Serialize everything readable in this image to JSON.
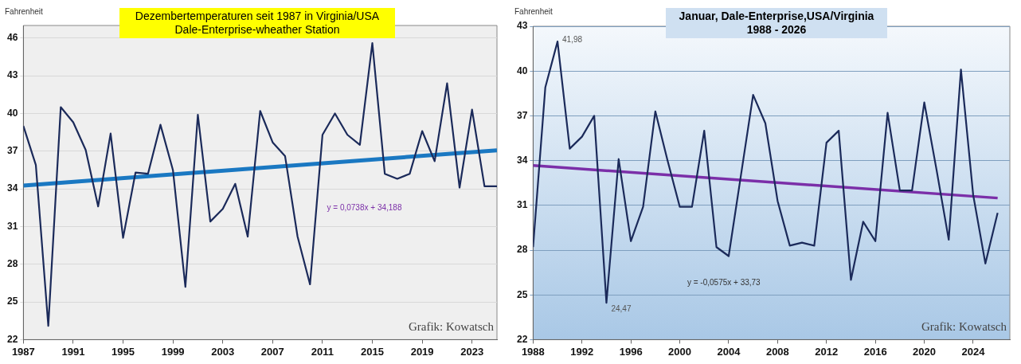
{
  "chart_data": [
    {
      "type": "line",
      "title": "Dezembertemperaturen seit 1987 in Virginia/USA",
      "subtitle": "Dale-Enterprise-wheather Station",
      "ylabel": "Fahrenheit",
      "x": [
        1987,
        1988,
        1989,
        1990,
        1991,
        1992,
        1993,
        1994,
        1995,
        1996,
        1997,
        1998,
        1999,
        2000,
        2001,
        2002,
        2003,
        2004,
        2005,
        2006,
        2007,
        2008,
        2009,
        2010,
        2011,
        2012,
        2013,
        2014,
        2015,
        2016,
        2017,
        2018,
        2019,
        2020,
        2021,
        2022,
        2023,
        2024,
        2025
      ],
      "series": [
        {
          "color": "#1b2a5a",
          "values": [
            39.0,
            35.9,
            23.1,
            40.5,
            39.3,
            37.1,
            32.6,
            38.4,
            30.1,
            35.3,
            35.2,
            39.1,
            35.5,
            26.2,
            39.9,
            31.4,
            32.4,
            34.4,
            30.2,
            40.2,
            37.7,
            36.6,
            30.2,
            26.4,
            38.3,
            40.0,
            38.3,
            37.5,
            45.6,
            35.2,
            34.8,
            35.2,
            38.6,
            36.2,
            42.4,
            34.1,
            40.3,
            34.2,
            34.2
          ]
        },
        {
          "color": "#1a78c2",
          "x": [
            1987,
            2025
          ],
          "values": [
            34.26,
            37.07
          ]
        }
      ],
      "xlim": [
        1987,
        2025
      ],
      "xticks": [
        1987,
        1991,
        1995,
        1999,
        2003,
        2007,
        2011,
        2015,
        2019,
        2023
      ],
      "ylim": [
        22,
        47
      ],
      "yticks": [
        22,
        25,
        28,
        31,
        34,
        37,
        40,
        43,
        46
      ],
      "grid": "y",
      "annotations": [
        "y = 0,0738x + 34,188",
        "Grafik: Kowatsch"
      ]
    },
    {
      "type": "line",
      "title": "Januar, Dale-Enterprise,USA/Virginia",
      "subtitle": "1988 - 2026",
      "ylabel": "Fahrenheit",
      "x": [
        1988,
        1989,
        1990,
        1991,
        1992,
        1993,
        1994,
        1995,
        1996,
        1997,
        1998,
        1999,
        2000,
        2001,
        2002,
        2003,
        2004,
        2005,
        2006,
        2007,
        2008,
        2009,
        2010,
        2011,
        2012,
        2013,
        2014,
        2015,
        2016,
        2017,
        2018,
        2019,
        2020,
        2021,
        2022,
        2023,
        2024,
        2025,
        2026
      ],
      "series": [
        {
          "color": "#1b2a5a",
          "values": [
            28.2,
            38.9,
            41.98,
            34.8,
            35.6,
            37.0,
            24.47,
            34.1,
            28.6,
            30.9,
            37.3,
            34.0,
            30.9,
            30.9,
            36.0,
            28.2,
            27.6,
            33.0,
            38.4,
            36.5,
            31.3,
            28.3,
            28.5,
            28.3,
            35.2,
            36.0,
            26.0,
            29.9,
            28.6,
            37.2,
            32.0,
            32.0,
            37.9,
            33.4,
            28.7,
            40.1,
            31.7,
            27.1,
            30.5
          ],
          "value_labels": [
            null,
            null,
            "41,98",
            null,
            null,
            null,
            "24,47",
            null,
            null,
            null,
            null,
            null,
            null,
            null,
            null,
            null,
            null,
            null,
            null,
            null,
            null,
            null,
            null,
            null,
            null,
            null,
            null,
            null,
            null,
            null,
            null,
            null,
            null,
            null,
            null,
            null,
            null,
            null,
            null
          ]
        },
        {
          "color": "#7b2fa8",
          "x": [
            1988,
            2026
          ],
          "values": [
            33.67,
            31.49
          ]
        }
      ],
      "xlim": [
        1988,
        2027
      ],
      "xticks": [
        1988,
        1992,
        1996,
        2000,
        2004,
        2008,
        2012,
        2016,
        2020,
        2024
      ],
      "ylim": [
        22,
        43
      ],
      "yticks": [
        22,
        25,
        28,
        31,
        34,
        37,
        40,
        43
      ],
      "grid": "y",
      "annotations": [
        "y = -0,0575x + 33,73",
        "Grafik: Kowatsch"
      ]
    }
  ]
}
